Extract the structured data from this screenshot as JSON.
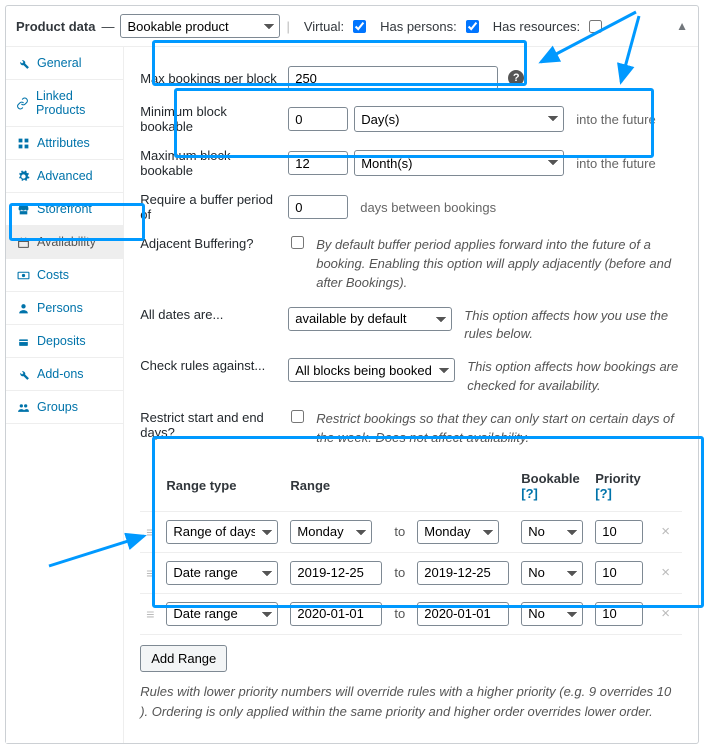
{
  "header": {
    "title_prefix": "Product data",
    "dash": "—",
    "product_type": "Bookable product",
    "virtual_label": "Virtual:",
    "virtual_checked": true,
    "persons_label": "Has persons:",
    "persons_checked": true,
    "resources_label": "Has resources:",
    "resources_checked": false
  },
  "sidebar": {
    "items": [
      {
        "label": "General",
        "icon": "wrench"
      },
      {
        "label": "Linked Products",
        "icon": "link"
      },
      {
        "label": "Attributes",
        "icon": "blocks"
      },
      {
        "label": "Advanced",
        "icon": "gear"
      },
      {
        "label": "Storefront",
        "icon": "storefront"
      },
      {
        "label": "Availability",
        "icon": "calendar"
      },
      {
        "label": "Costs",
        "icon": "money"
      },
      {
        "label": "Persons",
        "icon": "person"
      },
      {
        "label": "Deposits",
        "icon": "deposit"
      },
      {
        "label": "Add-ons",
        "icon": "wrench"
      },
      {
        "label": "Groups",
        "icon": "groups"
      }
    ],
    "active_index": 5
  },
  "fields": {
    "max_bookings_label": "Max bookings per block",
    "max_bookings_value": "250",
    "min_block_label": "Minimum block bookable",
    "min_block_value": "0",
    "min_block_unit": "Day(s)",
    "max_block_label": "Maximum block bookable",
    "max_block_value": "12",
    "max_block_unit": "Month(s)",
    "into_future": "into the future",
    "buffer_label": "Require a buffer period of",
    "buffer_value": "0",
    "buffer_suffix": "days between bookings",
    "adj_label": "Adjacent Buffering?",
    "adj_desc": "By default buffer period applies forward into the future of a booking. Enabling this option will apply adjacently (before and after Bookings).",
    "alldates_label": "All dates are...",
    "alldates_value": "available by default",
    "alldates_desc": "This option affects how you use the rules below.",
    "checkrules_label": "Check rules against...",
    "checkrules_value": "All blocks being booked",
    "checkrules_desc": "This option affects how bookings are checked for availability.",
    "restrict_label": "Restrict start and end days?",
    "restrict_desc": "Restrict bookings so that they can only start on certain days of the week. Does not affect availability."
  },
  "rules_table": {
    "headers": {
      "range_type": "Range type",
      "range": "Range",
      "bookable": "Bookable",
      "priority": "Priority",
      "help": "[?]"
    },
    "to": "to",
    "rows": [
      {
        "type": "Range of days",
        "from": "Monday",
        "to": "Monday",
        "mode": "select",
        "bookable": "No",
        "priority": "10"
      },
      {
        "type": "Date range",
        "from": "2019-12-25",
        "to": "2019-12-25",
        "mode": "text",
        "bookable": "No",
        "priority": "10"
      },
      {
        "type": "Date range",
        "from": "2020-01-01",
        "to": "2020-01-01",
        "mode": "text",
        "bookable": "No",
        "priority": "10"
      }
    ],
    "add_range": "Add Range",
    "footnote": "Rules with lower priority numbers will override rules with a higher priority (e.g. 9 overrides 10 ). Ordering is only applied within the same priority and higher order overrides lower order."
  },
  "colors": {
    "highlight": "#0099ff"
  }
}
